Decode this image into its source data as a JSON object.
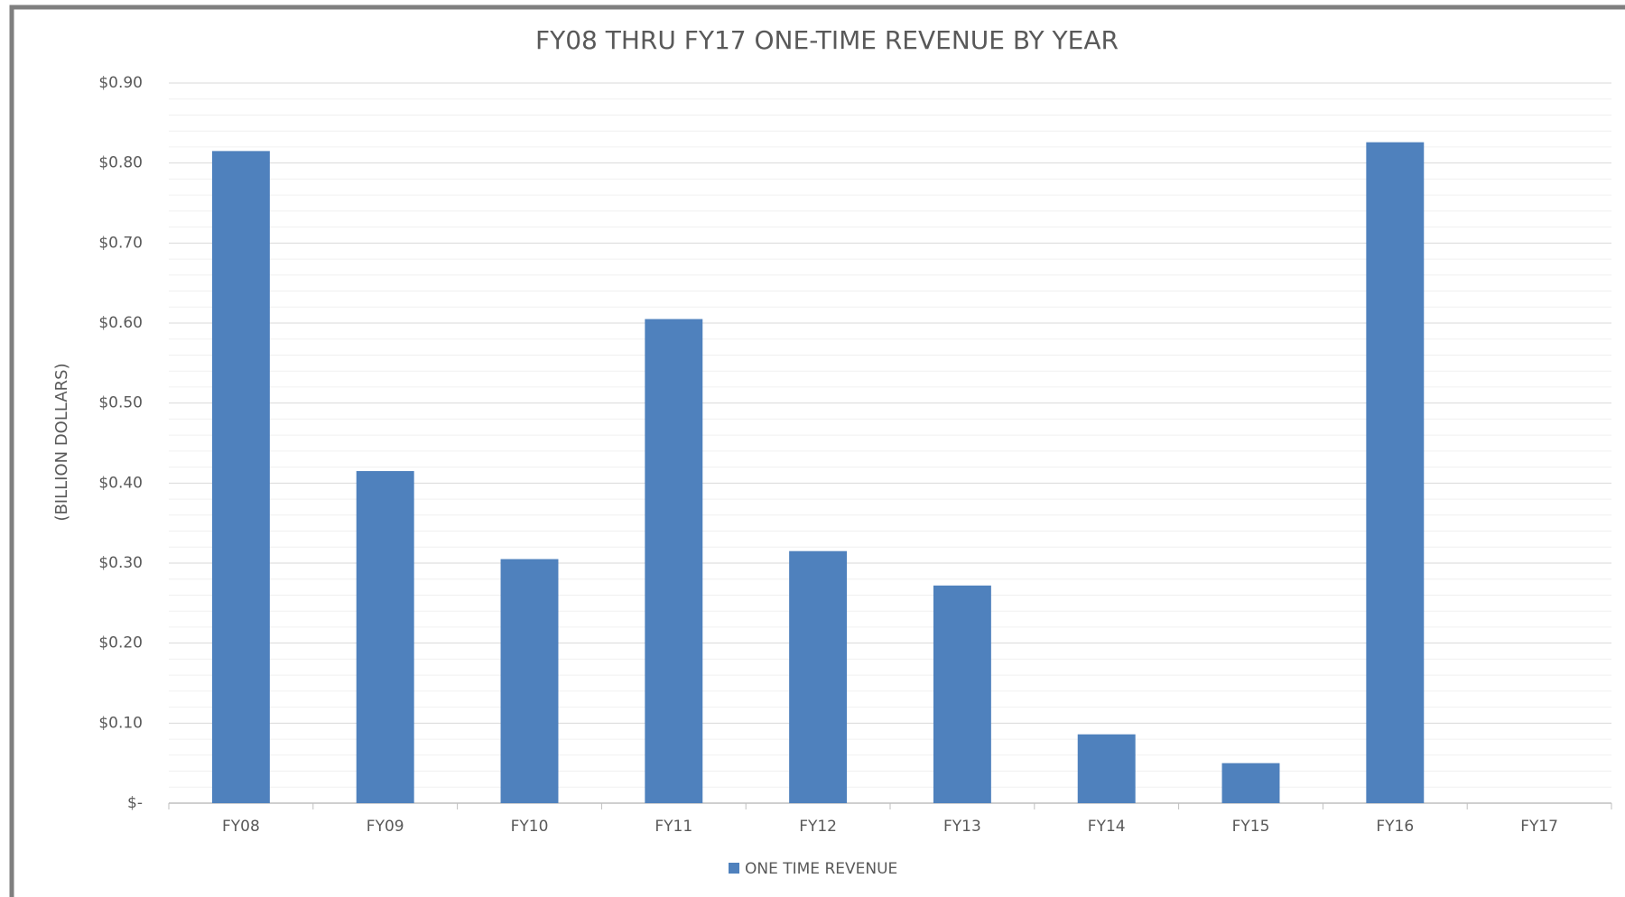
{
  "chart_data": {
    "type": "bar",
    "title": "FY08 THRU FY17 ONE-TIME REVENUE BY YEAR",
    "y_label": "(BILLION DOLLARS)",
    "categories": [
      "FY08",
      "FY09",
      "FY10",
      "FY11",
      "FY12",
      "FY13",
      "FY14",
      "FY15",
      "FY16",
      "FY17"
    ],
    "series": [
      {
        "name": "ONE TIME REVENUE",
        "color": "#4f81bd",
        "values": [
          0.815,
          0.415,
          0.305,
          0.605,
          0.315,
          0.272,
          0.086,
          0.05,
          0.826,
          0
        ]
      }
    ],
    "ylim": [
      0,
      0.9
    ],
    "yticks": [
      {
        "value": 0,
        "label": "$-"
      },
      {
        "value": 0.1,
        "label": "$0.10"
      },
      {
        "value": 0.2,
        "label": "$0.20"
      },
      {
        "value": 0.3,
        "label": "$0.30"
      },
      {
        "value": 0.4,
        "label": "$0.40"
      },
      {
        "value": 0.5,
        "label": "$0.50"
      },
      {
        "value": 0.6,
        "label": "$0.60"
      },
      {
        "value": 0.7,
        "label": "$0.70"
      },
      {
        "value": 0.8,
        "label": "$0.80"
      },
      {
        "value": 0.9,
        "label": "$0.90"
      }
    ],
    "minor_yticks": [
      0.02,
      0.04,
      0.06,
      0.08,
      0.12,
      0.14,
      0.16,
      0.18,
      0.22,
      0.24,
      0.26,
      0.28,
      0.32,
      0.34,
      0.36,
      0.38,
      0.42,
      0.44,
      0.46,
      0.48,
      0.52,
      0.54,
      0.56,
      0.58,
      0.62,
      0.64,
      0.66,
      0.68,
      0.72,
      0.74,
      0.76,
      0.78,
      0.82,
      0.84,
      0.86,
      0.88
    ],
    "grid": true,
    "legend": "bottom"
  }
}
